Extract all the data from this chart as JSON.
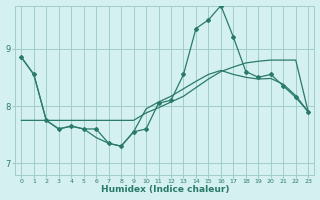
{
  "xlabel": "Humidex (Indice chaleur)",
  "bg_color": "#d4f0f0",
  "grid_color": "#a0cccc",
  "line_color": "#2a7a6a",
  "xlim": [
    -0.5,
    23.5
  ],
  "ylim": [
    6.8,
    9.75
  ],
  "yticks": [
    7,
    8,
    9
  ],
  "xticks": [
    0,
    1,
    2,
    3,
    4,
    5,
    6,
    7,
    8,
    9,
    10,
    11,
    12,
    13,
    14,
    15,
    16,
    17,
    18,
    19,
    20,
    21,
    22,
    23
  ],
  "series_jagged_x": [
    0,
    1,
    2,
    3,
    4,
    5,
    6,
    7,
    8,
    9,
    10,
    11,
    12,
    13,
    14,
    15,
    16,
    17,
    18,
    19,
    20,
    21,
    22,
    23
  ],
  "series_jagged_y": [
    8.85,
    8.55,
    7.75,
    7.6,
    7.65,
    7.6,
    7.6,
    7.35,
    7.3,
    7.55,
    7.6,
    8.05,
    8.1,
    8.55,
    9.35,
    9.5,
    9.75,
    9.2,
    8.6,
    8.5,
    8.55,
    8.35,
    8.15,
    7.9
  ],
  "series_flat_x": [
    0,
    1,
    2,
    3,
    4,
    5,
    6,
    7,
    8,
    9,
    10,
    11,
    12,
    13,
    14,
    15,
    16,
    17,
    18,
    19,
    20,
    21,
    22,
    23
  ],
  "series_flat_y": [
    7.75,
    7.75,
    7.75,
    7.75,
    7.75,
    7.75,
    7.75,
    7.75,
    7.75,
    7.75,
    7.88,
    7.97,
    8.07,
    8.17,
    8.32,
    8.47,
    8.6,
    8.68,
    8.75,
    8.78,
    8.8,
    8.8,
    8.8,
    7.9
  ],
  "series_smooth_x": [
    0,
    1,
    2,
    3,
    4,
    5,
    6,
    7,
    8,
    9,
    10,
    11,
    12,
    13,
    14,
    15,
    16,
    17,
    18,
    19,
    20,
    21,
    22,
    23
  ],
  "series_smooth_y": [
    8.85,
    8.55,
    7.75,
    7.6,
    7.65,
    7.6,
    7.45,
    7.35,
    7.3,
    7.55,
    7.95,
    8.07,
    8.17,
    8.3,
    8.43,
    8.55,
    8.62,
    8.55,
    8.5,
    8.47,
    8.48,
    8.38,
    8.18,
    7.9
  ]
}
